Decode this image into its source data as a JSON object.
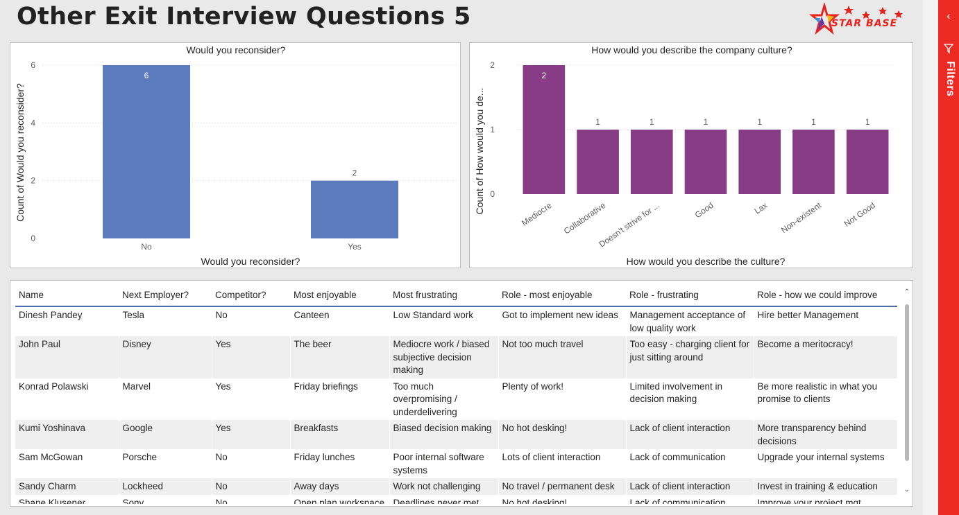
{
  "page": {
    "title": "Other Exit Interview Questions 5"
  },
  "logo": {
    "text": "STAR BASE"
  },
  "filters_pane": {
    "label": "Filters",
    "collapse_icon": "chevron-left-icon",
    "filter_icon": "funnel-icon"
  },
  "chart_data": [
    {
      "type": "bar",
      "title": "Would you reconsider?",
      "xlabel": "Would you reconsider?",
      "ylabel": "Count of Would you reconsider?",
      "categories": [
        "No",
        "Yes"
      ],
      "values": [
        6,
        2
      ],
      "data_labels": [
        "6",
        "2"
      ],
      "yticks": [
        0,
        2,
        4,
        6
      ],
      "ylim": [
        0,
        6
      ],
      "grid": true,
      "color": "#5b7bbd"
    },
    {
      "type": "bar",
      "title": "How would you describe the company culture?",
      "xlabel": "How would you describe the culture?",
      "ylabel": "Count of How would you de...",
      "categories": [
        "Mediocre",
        "Collaborative",
        "Doesn't strive for ...",
        "Good",
        "Lax",
        "Non-existent",
        "Not Good"
      ],
      "values": [
        2,
        1,
        1,
        1,
        1,
        1,
        1
      ],
      "data_labels": [
        "2",
        "1",
        "1",
        "1",
        "1",
        "1",
        "1"
      ],
      "yticks": [
        0,
        1,
        2
      ],
      "ylim": [
        0,
        2
      ],
      "grid": true,
      "color": "#883c86"
    }
  ],
  "table": {
    "columns": [
      "Name",
      "Next Employer?",
      "Competitor?",
      "Most enjoyable",
      "Most frustrating",
      "Role - most enjoyable",
      "Role - frustrating",
      "Role - how we could improve"
    ],
    "rows": [
      [
        "Dinesh Pandey",
        "Tesla",
        "No",
        "Canteen",
        "Low Standard work",
        "Got to implement new ideas",
        "Management acceptance of low quality work",
        "Hire better Management"
      ],
      [
        "John Paul",
        "Disney",
        "Yes",
        "The beer",
        "Mediocre work / biased subjective decision making",
        "Not too much travel",
        "Too easy - charging client for just sitting around",
        "Become a meritocracy!"
      ],
      [
        "Konrad Polawski",
        "Marvel",
        "Yes",
        "Friday briefings",
        "Too much overpromising / underdelivering",
        "Plenty of work!",
        "Limited involvement in decision making",
        "Be more realistic in what you promise to clients"
      ],
      [
        "Kumi Yoshinava",
        "Google",
        "Yes",
        "Breakfasts",
        "Biased decision making",
        "No hot desking!",
        "Lack of client interaction",
        "More transparency behind decisions"
      ],
      [
        "Sam McGowan",
        "Porsche",
        "No",
        "Friday lunches",
        "Poor internal software systems",
        "Lots of client interaction",
        "Lack of communication",
        "Upgrade your internal systems"
      ],
      [
        "Sandy Charm",
        "Lockheed",
        "No",
        "Away days",
        "Work not challenging",
        "No travel / permanent desk",
        "Lack of client interaction",
        "Invest in training & education"
      ],
      [
        "Shane Klusener",
        "Sony",
        "No",
        "Open plan workspace",
        "Deadlines never met",
        "No hot desking!",
        "Lack of communication",
        "Improve your project mgt."
      ]
    ]
  }
}
